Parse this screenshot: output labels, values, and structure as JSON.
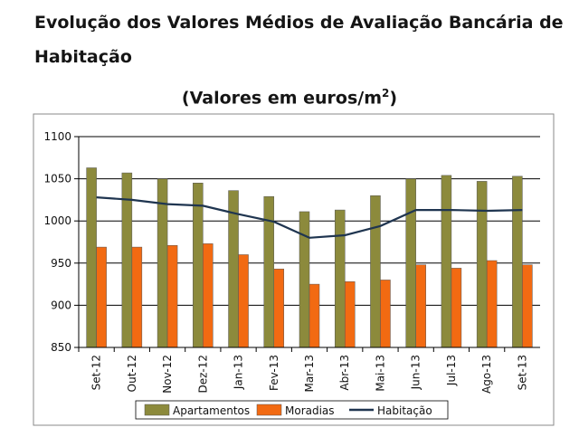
{
  "heading": {
    "line1": "Evolução dos Valores Médios de Avaliação Bancária de",
    "line2": "Habitação"
  },
  "chart_data": {
    "type": "bar",
    "title": "(Valores em euros/m",
    "title_superscript": "2",
    "title_suffix": ")",
    "categories": [
      "Set-12",
      "Out-12",
      "Nov-12",
      "Dez-12",
      "Jan-13",
      "Fev-13",
      "Mar-13",
      "Abr-13",
      "Mai-13",
      "Jun-13",
      "Jul-13",
      "Ago-13",
      "Set-13"
    ],
    "series": [
      {
        "name": "Apartamentos",
        "type": "bar",
        "color": "#8c8a3c",
        "values": [
          1063,
          1057,
          1050,
          1045,
          1036,
          1029,
          1011,
          1013,
          1030,
          1050,
          1054,
          1047,
          1053
        ]
      },
      {
        "name": "Moradias",
        "type": "bar",
        "color": "#f26a12",
        "values": [
          969,
          969,
          971,
          973,
          960,
          943,
          925,
          928,
          930,
          948,
          944,
          953,
          948
        ]
      },
      {
        "name": "Habitação",
        "type": "line",
        "color": "#1f3550",
        "values": [
          1028,
          1025,
          1020,
          1018,
          1008,
          999,
          980,
          983,
          994,
          1013,
          1013,
          1012,
          1013
        ]
      }
    ],
    "ylim": [
      850,
      1100
    ],
    "yticks": [
      "850",
      "900",
      "950",
      "1000",
      "1050",
      "1100"
    ],
    "grid": true,
    "legend_position": "bottom"
  }
}
